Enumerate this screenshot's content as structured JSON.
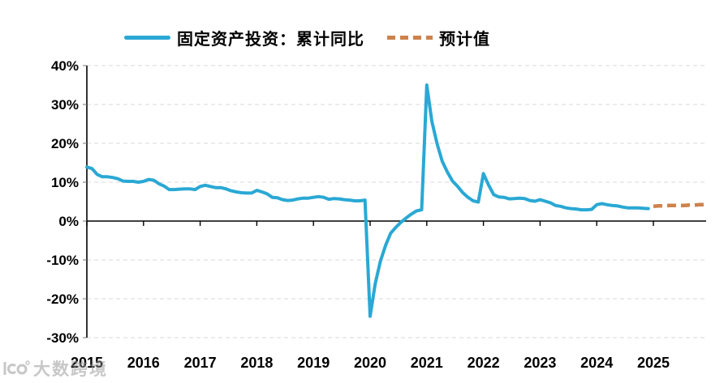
{
  "legend": {
    "series1_label": "固定资产投资：累计同比",
    "series2_label": "预计值"
  },
  "watermark": {
    "text": "大数跨境",
    "logo_icon": "dashukuajing-logo"
  },
  "colors": {
    "actual_line": "#2AA8D4",
    "forecast_line": "#CD824C",
    "gridline": "#D8D8D8",
    "axis": "#000000",
    "tick_label": "#000000"
  },
  "chart_data": {
    "type": "line",
    "title": "",
    "start_year": 2015,
    "months_per_year": "Feb-Dec (11 cumulative readings per year)",
    "x_axis": {
      "tick_labels": [
        "2015",
        "2016",
        "2017",
        "2018",
        "2019",
        "2020",
        "2021",
        "2022",
        "2023",
        "2024",
        "2025"
      ]
    },
    "y_axis": {
      "unit": "%",
      "min": -30,
      "max": 40,
      "tick_values": [
        40,
        30,
        20,
        10,
        0,
        -10,
        -20,
        -30
      ],
      "tick_labels": [
        "40%",
        "30%",
        "20%",
        "10%",
        "0%",
        "-10%",
        "-20%",
        "-30%"
      ]
    },
    "gridline_values": [
      40,
      30,
      20,
      10,
      -10,
      -20,
      -30
    ],
    "legend_position": "top",
    "grid": "horizontal-dashed",
    "series": [
      {
        "name": "固定资产投资：累计同比",
        "style": "solid",
        "color": "#2AA8D4",
        "values_by_year": {
          "2015": [
            13.9,
            13.5,
            12.0,
            11.4,
            11.4,
            11.2,
            10.9,
            10.3,
            10.2,
            10.2,
            10.0
          ],
          "2016": [
            10.2,
            10.7,
            10.5,
            9.6,
            9.0,
            8.1,
            8.1,
            8.2,
            8.3,
            8.3,
            8.1
          ],
          "2017": [
            8.9,
            9.2,
            8.9,
            8.6,
            8.6,
            8.3,
            7.8,
            7.5,
            7.3,
            7.2,
            7.2
          ],
          "2018": [
            7.9,
            7.5,
            7.0,
            6.1,
            6.0,
            5.5,
            5.3,
            5.4,
            5.7,
            5.9,
            5.9
          ],
          "2019": [
            6.1,
            6.3,
            6.1,
            5.6,
            5.8,
            5.7,
            5.5,
            5.4,
            5.2,
            5.2,
            5.4
          ],
          "2020": [
            -24.5,
            -16.1,
            -10.3,
            -6.3,
            -3.1,
            -1.6,
            -0.3,
            0.8,
            1.8,
            2.6,
            2.9
          ],
          "2021": [
            35.0,
            25.6,
            19.9,
            15.4,
            12.6,
            10.3,
            8.9,
            7.3,
            6.1,
            5.2,
            4.9
          ],
          "2022": [
            12.2,
            9.3,
            6.8,
            6.2,
            6.1,
            5.7,
            5.8,
            5.9,
            5.8,
            5.3,
            5.1
          ],
          "2023": [
            5.5,
            5.1,
            4.7,
            4.0,
            3.8,
            3.4,
            3.2,
            3.1,
            2.9,
            2.9,
            3.0
          ],
          "2024": [
            4.2,
            4.5,
            4.2,
            4.0,
            3.9,
            3.6,
            3.4,
            3.4,
            3.4,
            3.3,
            3.2
          ]
        }
      },
      {
        "name": "预计值",
        "style": "dashed",
        "color": "#CD824C",
        "values_by_year": {
          "2025": [
            3.8,
            3.9,
            3.9,
            4.0,
            4.0,
            4.0,
            4.0,
            4.1,
            4.1,
            4.2,
            4.2
          ]
        }
      }
    ]
  }
}
